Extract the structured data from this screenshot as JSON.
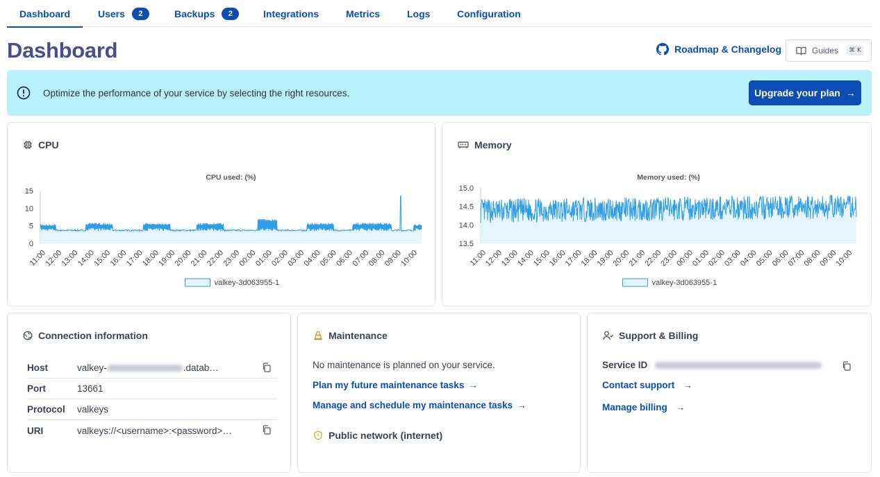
{
  "tabs": [
    {
      "label": "Dashboard",
      "active": true
    },
    {
      "label": "Users",
      "badge": "2"
    },
    {
      "label": "Backups",
      "badge": "2"
    },
    {
      "label": "Integrations"
    },
    {
      "label": "Metrics"
    },
    {
      "label": "Logs"
    },
    {
      "label": "Configuration"
    }
  ],
  "header": {
    "title": "Dashboard",
    "roadmap_label": "Roadmap & Changelog",
    "guides_label": "Guides",
    "guides_shortcut": "⌘ K"
  },
  "banner": {
    "text": "Optimize the performance of your service by selecting the right resources.",
    "button_label": "Upgrade your plan"
  },
  "cpu": {
    "card_title": "CPU",
    "chart_data": {
      "type": "area",
      "title": "CPU used: (%)",
      "x_ticks": [
        "11:00",
        "12:00",
        "13:00",
        "14:00",
        "15:00",
        "16:00",
        "17:00",
        "18:00",
        "19:00",
        "20:00",
        "21:00",
        "22:00",
        "23:00",
        "00:00",
        "01:00",
        "02:00",
        "03:00",
        "04:00",
        "05:00",
        "06:00",
        "07:00",
        "08:00",
        "09:00",
        "10:00"
      ],
      "y_ticks": [
        "0",
        "5",
        "10",
        "15"
      ],
      "ylim": [
        0,
        15
      ],
      "series": [
        {
          "name": "valkey-3d063955-1",
          "baseline": 3.5,
          "bursts": [
            [
              0,
              0.04,
              5.5
            ],
            [
              0.12,
              0.19,
              5.8
            ],
            [
              0.27,
              0.34,
              5.8
            ],
            [
              0.41,
              0.48,
              5.8
            ],
            [
              0.57,
              0.62,
              7
            ],
            [
              0.7,
              0.77,
              5.8
            ],
            [
              0.82,
              0.92,
              5.8
            ],
            [
              0.98,
              1.0,
              5.5
            ]
          ],
          "spike": {
            "x": 0.945,
            "value": 13.5
          }
        }
      ]
    },
    "legend_label": "valkey-3d063955-1"
  },
  "memory": {
    "card_title": "Memory",
    "chart_data": {
      "type": "area",
      "title": "Memory used: (%)",
      "x_ticks": [
        "11:00",
        "12:00",
        "13:00",
        "14:00",
        "15:00",
        "16:00",
        "17:00",
        "18:00",
        "19:00",
        "20:00",
        "21:00",
        "22:00",
        "23:00",
        "00:00",
        "01:00",
        "02:00",
        "03:00",
        "04:00",
        "05:00",
        "06:00",
        "07:00",
        "08:00",
        "09:00",
        "10:00"
      ],
      "y_ticks": [
        "13.5",
        "14.0",
        "14.5",
        "15.0"
      ],
      "ylim": [
        13.5,
        15.0
      ],
      "series": [
        {
          "name": "valkey-3d063955-1",
          "low": 14.0,
          "high": 14.85
        }
      ]
    },
    "legend_label": "valkey-3d063955-1"
  },
  "connection": {
    "card_title": "Connection information",
    "rows": [
      {
        "key": "Host",
        "value_prefix": "valkey-",
        "value_suffix": ".datab…",
        "copy": true
      },
      {
        "key": "Port",
        "value": "13661"
      },
      {
        "key": "Protocol",
        "value": "valkeys"
      },
      {
        "key": "URI",
        "value": "valkeys://<username>:<password>…",
        "copy": true
      }
    ]
  },
  "maintenance": {
    "card_title": "Maintenance",
    "status": "No maintenance is planned on your service.",
    "link_plan": "Plan my future maintenance tasks",
    "link_manage": "Manage and schedule my maintenance tasks",
    "network_title": "Public network (internet)"
  },
  "support": {
    "card_title": "Support & Billing",
    "service_id_label": "Service ID",
    "contact_label": "Contact support",
    "billing_label": "Manage billing"
  },
  "colors": {
    "accent": "#0b4db5",
    "banner": "#b8f0fc",
    "series_line": "#2e9ee8",
    "series_fill": "#e6f5fd"
  }
}
